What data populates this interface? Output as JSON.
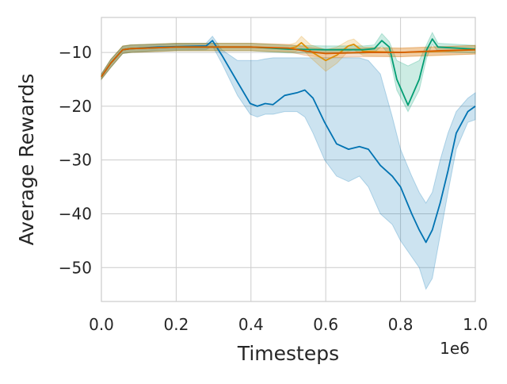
{
  "chart_data": {
    "type": "line",
    "title": "",
    "xlabel": "Timesteps",
    "ylabel": "Average Rewards",
    "x_offset_label": "1e6",
    "xlim": [
      0,
      1.0
    ],
    "ylim": [
      -56.3,
      -3.5
    ],
    "xticks": [
      0.0,
      0.2,
      0.4,
      0.6,
      0.8,
      1.0
    ],
    "xtick_labels": [
      "0.0",
      "0.2",
      "0.4",
      "0.6",
      "0.8",
      "1.0"
    ],
    "yticks": [
      -10,
      -20,
      -30,
      -40,
      -50
    ],
    "ytick_labels": [
      "−10",
      "−20",
      "−30",
      "−40",
      "−50"
    ],
    "grid": true,
    "legend": "none",
    "series": [
      {
        "name": "blue",
        "color": "#0173b2",
        "x": [
          0,
          0.025,
          0.057,
          0.078,
          0.15,
          0.28,
          0.297,
          0.322,
          0.364,
          0.398,
          0.417,
          0.438,
          0.459,
          0.49,
          0.523,
          0.544,
          0.566,
          0.597,
          0.629,
          0.661,
          0.69,
          0.714,
          0.746,
          0.778,
          0.8,
          0.83,
          0.85,
          0.868,
          0.885,
          0.906,
          0.927,
          0.949,
          0.98,
          1.0
        ],
        "y": [
          -14.5,
          -12,
          -9.5,
          -9.3,
          -9.0,
          -8.8,
          -7.8,
          -10.5,
          -15.5,
          -19.5,
          -20,
          -19.5,
          -19.7,
          -18,
          -17.5,
          -17,
          -18.5,
          -23,
          -27,
          -28,
          -27.5,
          -28,
          -31,
          -33,
          -35,
          -40,
          -43,
          -45.3,
          -43,
          -38,
          -32,
          -25,
          -21,
          -20
        ],
        "lower": [
          -15,
          -12.8,
          -10.2,
          -10,
          -9.6,
          -9.5,
          -8.8,
          -12,
          -18,
          -21.5,
          -22,
          -21.5,
          -21.5,
          -21,
          -21,
          -22,
          -25,
          -30,
          -33,
          -34,
          -33,
          -35,
          -40,
          -42,
          -45,
          -48,
          -50,
          -54,
          -52,
          -44,
          -36,
          -28,
          -23,
          -22.5
        ],
        "upper": [
          -14,
          -11.3,
          -8.9,
          -8.6,
          -8.5,
          -8.3,
          -7,
          -9.5,
          -11.5,
          -11.5,
          -11.5,
          -11.2,
          -11,
          -11,
          -11,
          -11,
          -11,
          -11,
          -11,
          -11,
          -11,
          -11.5,
          -14,
          -22,
          -28,
          -33,
          -36,
          -38,
          -36,
          -30,
          -25,
          -21,
          -18.5,
          -17.5
        ]
      },
      {
        "name": "orange",
        "color": "#de8f05",
        "x": [
          0,
          0.025,
          0.057,
          0.078,
          0.2,
          0.4,
          0.5,
          0.52,
          0.535,
          0.56,
          0.6,
          0.63,
          0.66,
          0.675,
          0.7,
          0.8,
          0.9,
          1.0
        ],
        "y": [
          -14.5,
          -12,
          -9.5,
          -9.3,
          -9.0,
          -9.0,
          -9.3,
          -9.0,
          -8.2,
          -9.8,
          -11.5,
          -10.5,
          -8.8,
          -8.5,
          -9.8,
          -10,
          -9.8,
          -9.5
        ],
        "lower": [
          -15,
          -12.8,
          -10.2,
          -10,
          -9.7,
          -9.7,
          -10,
          -9.8,
          -9.2,
          -11,
          -13.5,
          -12,
          -9.8,
          -9.5,
          -10.6,
          -10.8,
          -10.6,
          -10.3
        ],
        "upper": [
          -14,
          -11.3,
          -8.8,
          -8.6,
          -8.3,
          -8.3,
          -8.6,
          -8.2,
          -7,
          -8.6,
          -9.5,
          -9,
          -7.8,
          -7.5,
          -9,
          -9.2,
          -9,
          -8.7
        ]
      },
      {
        "name": "green",
        "color": "#029e73",
        "x": [
          0,
          0.025,
          0.057,
          0.078,
          0.2,
          0.4,
          0.45,
          0.5,
          0.6,
          0.7,
          0.73,
          0.75,
          0.77,
          0.79,
          0.82,
          0.85,
          0.87,
          0.885,
          0.9,
          0.95,
          1.0
        ],
        "y": [
          -14.5,
          -12,
          -9.5,
          -9.3,
          -9.0,
          -9.0,
          -9.2,
          -9.4,
          -9.5,
          -9.5,
          -9.3,
          -7.8,
          -9,
          -15,
          -19.8,
          -15,
          -9.5,
          -7.5,
          -9,
          -9.2,
          -9.4
        ],
        "lower": [
          -15,
          -12.8,
          -10.2,
          -10,
          -9.7,
          -9.7,
          -9.9,
          -10.1,
          -10.2,
          -10.2,
          -10,
          -8.8,
          -10.5,
          -17,
          -21,
          -17,
          -11,
          -8.5,
          -9.8,
          -10,
          -10.1
        ],
        "upper": [
          -14,
          -11.3,
          -8.8,
          -8.6,
          -8.3,
          -8.3,
          -8.5,
          -8.7,
          -8.8,
          -8.8,
          -8.6,
          -6.5,
          -8,
          -11.5,
          -12.5,
          -11.5,
          -8.5,
          -6.3,
          -8.3,
          -8.5,
          -8.7
        ]
      },
      {
        "name": "red",
        "color": "#d55e00",
        "x": [
          0,
          0.025,
          0.057,
          0.078,
          0.2,
          0.4,
          0.5,
          0.55,
          0.6,
          0.7,
          0.8,
          0.9,
          1.0
        ],
        "y": [
          -14.5,
          -12,
          -9.5,
          -9.3,
          -9.0,
          -9.0,
          -9.2,
          -9.8,
          -10.2,
          -10,
          -10,
          -9.7,
          -9.5
        ],
        "lower": [
          -15,
          -12.8,
          -10.2,
          -10,
          -9.7,
          -9.7,
          -9.9,
          -10.6,
          -11,
          -10.8,
          -10.8,
          -10.5,
          -10.3
        ],
        "upper": [
          -14,
          -11.3,
          -8.8,
          -8.6,
          -8.3,
          -8.3,
          -8.5,
          -9,
          -9.4,
          -9.2,
          -9.2,
          -8.9,
          -8.7
        ]
      }
    ]
  }
}
